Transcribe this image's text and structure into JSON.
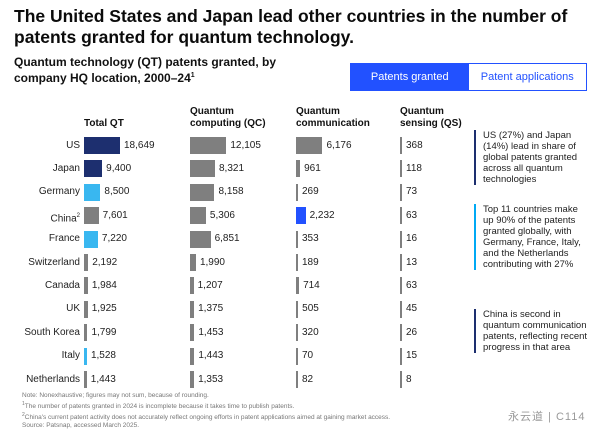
{
  "headline": "The United States and Japan lead other countries in the number of patents granted for quantum technology.",
  "subtitle": {
    "text": "Quantum technology (QT) patents granted, by company HQ location, 2000–24",
    "sup": "1"
  },
  "tabs": [
    {
      "label": "Patents granted",
      "active": true
    },
    {
      "label": "Patent applications",
      "active": false
    }
  ],
  "colors": {
    "navy": "#1d2f6f",
    "light_blue": "#39b7f0",
    "gray": "#7f7f7f",
    "bright_blue": "#2251ff"
  },
  "chart_data": {
    "type": "bar",
    "categories": [
      "US",
      "Japan",
      "Germany",
      "China",
      "France",
      "Switzerland",
      "Canada",
      "UK",
      "South Korea",
      "Italy",
      "Netherlands"
    ],
    "category_sups": [
      "",
      "",
      "",
      "2",
      "",
      "",
      "",
      "",
      "",
      "",
      ""
    ],
    "series": [
      {
        "name": "Total QT",
        "values": [
          18649,
          9400,
          8500,
          7601,
          7220,
          2192,
          1984,
          1925,
          1799,
          1528,
          1443
        ],
        "labels": [
          "18,649",
          "9,400",
          "8,500",
          "7,601",
          "7,220",
          "2,192",
          "1,984",
          "1,925",
          "1,799",
          "1,528",
          "1,443"
        ],
        "colors": [
          "navy",
          "navy",
          "light_blue",
          "gray",
          "light_blue",
          "gray",
          "gray",
          "gray",
          "gray",
          "light_blue",
          "gray"
        ]
      },
      {
        "name": "Quantum computing (QC)",
        "values": [
          12105,
          8321,
          8158,
          5306,
          6851,
          1990,
          1207,
          1375,
          1453,
          1443,
          1353
        ],
        "labels": [
          "12,105",
          "8,321",
          "8,158",
          "5,306",
          "6,851",
          "1,990",
          "1,207",
          "1,375",
          "1,453",
          "1,443",
          "1,353"
        ],
        "colors": [
          "gray",
          "gray",
          "gray",
          "gray",
          "gray",
          "gray",
          "gray",
          "gray",
          "gray",
          "gray",
          "gray"
        ]
      },
      {
        "name": "Quantum communication",
        "values": [
          6176,
          961,
          269,
          2232,
          353,
          189,
          714,
          505,
          320,
          70,
          82
        ],
        "labels": [
          "6,176",
          "961",
          "269",
          "2,232",
          "353",
          "189",
          "714",
          "505",
          "320",
          "70",
          "82"
        ],
        "colors": [
          "gray",
          "gray",
          "gray",
          "bright_blue",
          "gray",
          "gray",
          "gray",
          "gray",
          "gray",
          "gray",
          "gray"
        ]
      },
      {
        "name": "Quantum sensing (QS)",
        "values": [
          368,
          118,
          73,
          63,
          16,
          13,
          63,
          45,
          26,
          15,
          8
        ],
        "labels": [
          "368",
          "118",
          "73",
          "63",
          "16",
          "13",
          "63",
          "45",
          "26",
          "15",
          "8"
        ],
        "colors": [
          "gray",
          "gray",
          "gray",
          "gray",
          "gray",
          "gray",
          "gray",
          "gray",
          "gray",
          "gray",
          "gray"
        ]
      }
    ],
    "column_headers": [
      "Total QT",
      "Quantum\ncomputing (QC)",
      "Quantum\ncommunication",
      "Quantum\nsensing (QS)"
    ]
  },
  "notes": [
    "US (27%) and Japan (14%) lead in share of global patents granted across all quantum technologies",
    "Top 11 countries make up 90% of the patents granted globally, with Germany, France, Italy, and the Netherlands contributing with 27%",
    "China is second in quantum communication patents, reflecting recent progress in that area"
  ],
  "footnotes": {
    "note": "Note: Nonexhaustive; figures may not sum, because of rounding.",
    "fn1": "The number of patents granted in 2024 is incomplete because it takes time to publish patents.",
    "fn2": "China's current patent activity does not accurately reflect ongoing efforts in patent applications aimed at gaining market access.",
    "source": "Source: Patsnap, accessed March 2025."
  },
  "watermark": "永云道 | C114"
}
